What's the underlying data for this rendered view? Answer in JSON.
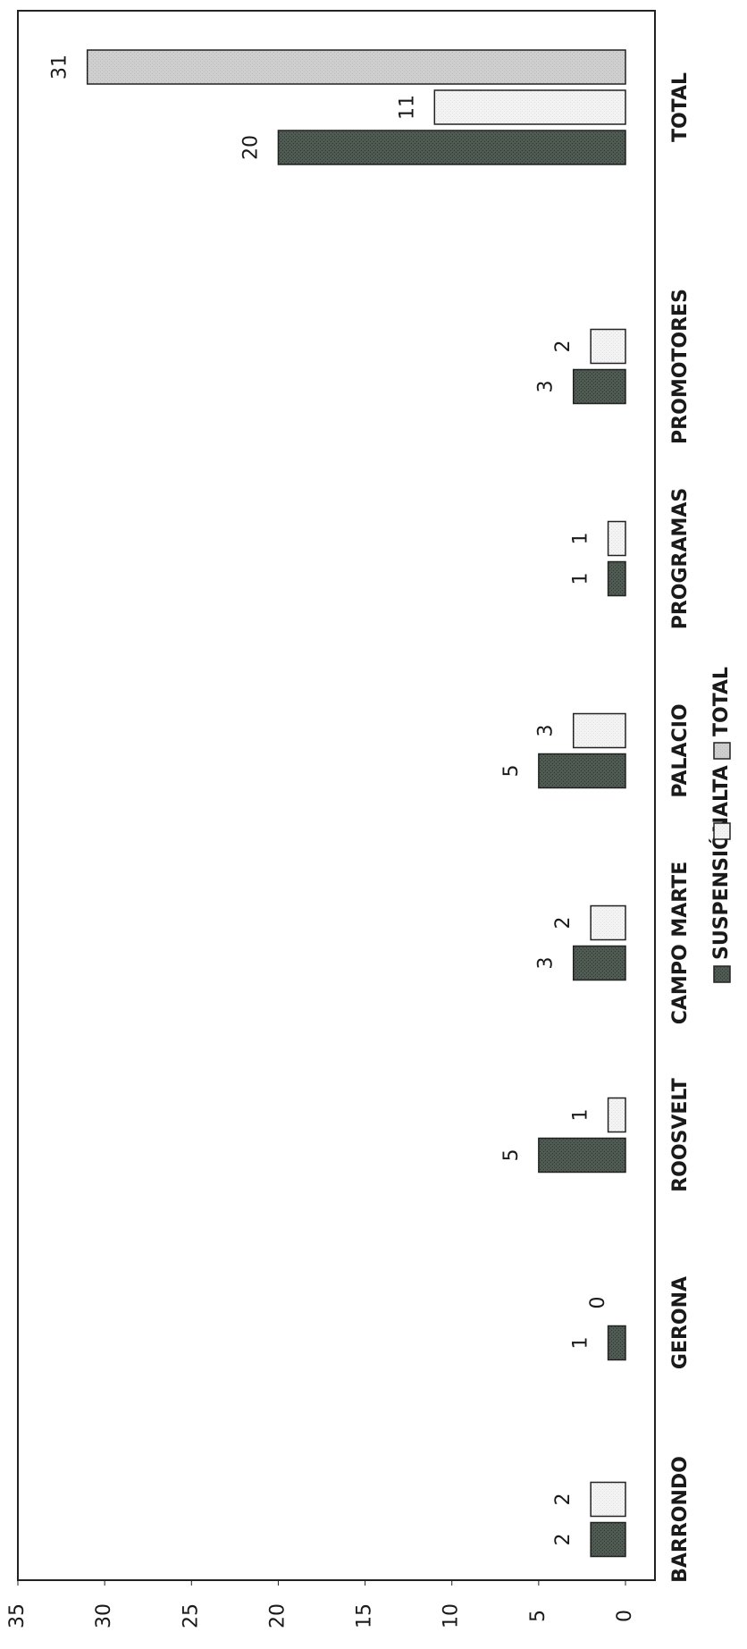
{
  "chart_data": {
    "type": "bar",
    "orientation": "rotated",
    "categories": [
      "BARRONDO",
      "GERONA",
      "ROOSVELT",
      "CAMPO MARTE",
      "PALACIO",
      "PROGRAMAS",
      "PROMOTORES",
      "TOTAL"
    ],
    "series": [
      {
        "name": "SUSPENSIÓN",
        "values": [
          2,
          1,
          5,
          3,
          5,
          1,
          3,
          20
        ],
        "color": "#4f5a52"
      },
      {
        "name": "ALTA",
        "values": [
          2,
          0,
          1,
          2,
          3,
          1,
          2,
          11
        ],
        "color": "#f3f3f3"
      },
      {
        "name": "TOTAL",
        "values": [
          null,
          null,
          null,
          null,
          null,
          null,
          null,
          31
        ],
        "color": "#cfcfcf"
      }
    ],
    "value_labels": {
      "SUSPENSIÓN": [
        "2",
        "1",
        "5",
        "3",
        "5",
        "1",
        "3",
        "20"
      ],
      "ALTA": [
        "2",
        "0",
        "1",
        "2",
        "3",
        "1",
        "2",
        "11"
      ],
      "TOTAL": [
        "",
        "",
        "",
        "",
        "",
        "",
        "",
        "31"
      ]
    },
    "y_ticks": [
      "0",
      "5",
      "10",
      "15",
      "20",
      "25",
      "30",
      "35"
    ],
    "ylim": [
      0,
      35
    ],
    "legend_position": "bottom",
    "grid": false,
    "title": "",
    "xlabel": "",
    "ylabel": ""
  }
}
